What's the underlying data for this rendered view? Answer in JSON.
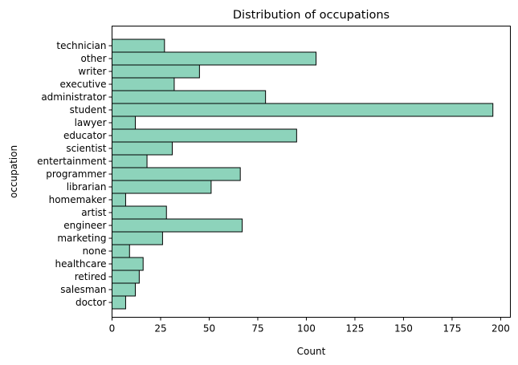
{
  "chart_data": {
    "type": "bar",
    "orientation": "horizontal",
    "title": "Distribution of occupations",
    "xlabel": "Count",
    "ylabel": "occupation",
    "xlim": [
      0,
      205
    ],
    "xticks": [
      0,
      25,
      50,
      75,
      100,
      125,
      150,
      175,
      200
    ],
    "grid": false,
    "bar_color": "#8dd3bb",
    "edge_color": "#000000",
    "categories": [
      "technician",
      "other",
      "writer",
      "executive",
      "administrator",
      "student",
      "lawyer",
      "educator",
      "scientist",
      "entertainment",
      "programmer",
      "librarian",
      "homemaker",
      "artist",
      "engineer",
      "marketing",
      "none",
      "healthcare",
      "retired",
      "salesman",
      "doctor"
    ],
    "values": [
      27,
      105,
      45,
      32,
      79,
      196,
      12,
      95,
      31,
      18,
      66,
      51,
      7,
      28,
      67,
      26,
      9,
      16,
      14,
      12,
      7
    ]
  }
}
